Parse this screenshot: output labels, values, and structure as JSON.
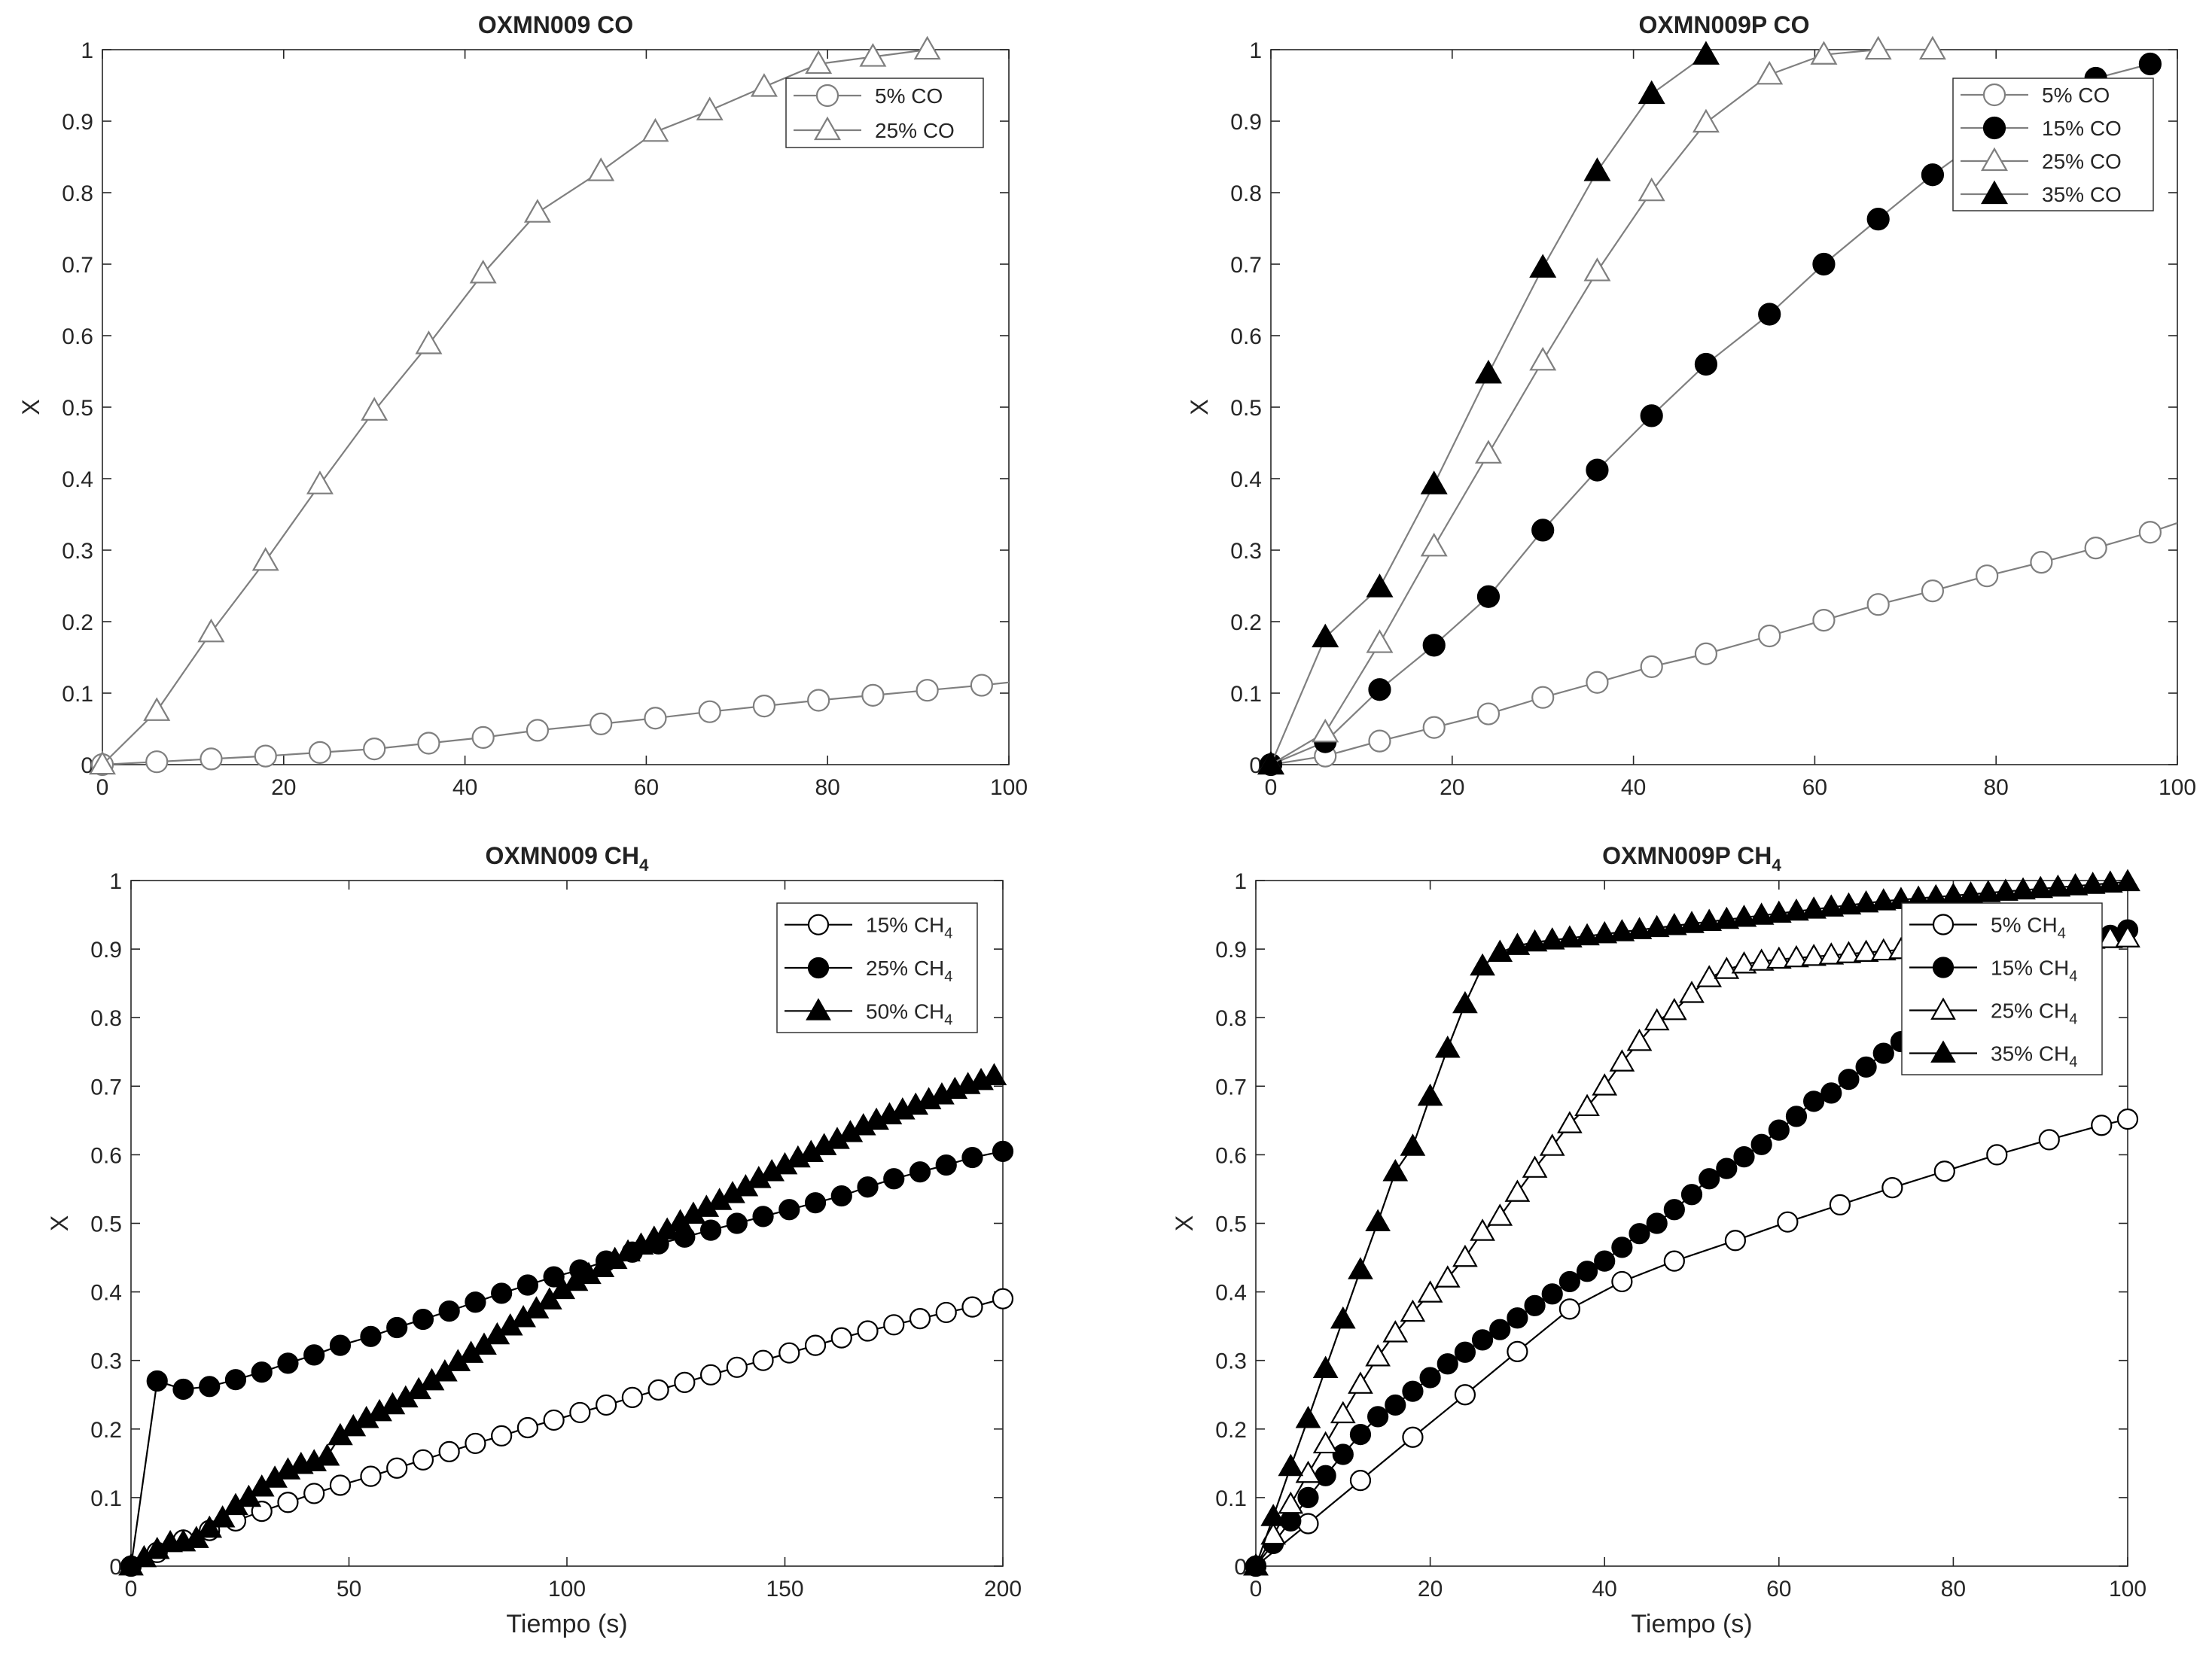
{
  "chart_data": [
    {
      "type": "line",
      "title": "OXMN009 CO",
      "xlabel": "",
      "ylabel": "X",
      "xlim": [
        0,
        100
      ],
      "ylim": [
        0,
        1
      ],
      "xticks": [
        "0",
        "20",
        "40",
        "60",
        "80",
        "100"
      ],
      "yticks": [
        "0",
        "0.1",
        "0.2",
        "0.3",
        "0.4",
        "0.5",
        "0.6",
        "0.7",
        "0.8",
        "0.9",
        "1"
      ],
      "legend_position": "top-right",
      "series": [
        {
          "name": "5% CO",
          "marker": "circle-open",
          "line_color": "#7f7f7f",
          "x": [
            0,
            6,
            12,
            18,
            24,
            30,
            36,
            42,
            48,
            55,
            61,
            67,
            73,
            79,
            85,
            91,
            97,
            100
          ],
          "y": [
            0,
            0.004,
            0.008,
            0.012,
            0.017,
            0.022,
            0.03,
            0.038,
            0.048,
            0.057,
            0.065,
            0.074,
            0.082,
            0.09,
            0.097,
            0.104,
            0.111,
            0.115
          ],
          "marker_x": [
            0,
            6,
            12,
            18,
            24,
            30,
            36,
            42,
            48,
            55,
            61,
            67,
            73,
            79,
            85,
            91,
            97
          ]
        },
        {
          "name": "25% CO",
          "marker": "triangle-open",
          "line_color": "#7f7f7f",
          "x": [
            0,
            6,
            12,
            18,
            24,
            30,
            36,
            42,
            48,
            55,
            61,
            67,
            73,
            79,
            85,
            91
          ],
          "y": [
            0,
            0.075,
            0.185,
            0.285,
            0.392,
            0.495,
            0.588,
            0.687,
            0.772,
            0.83,
            0.885,
            0.915,
            0.948,
            0.98,
            0.99,
            1.0
          ]
        }
      ]
    },
    {
      "type": "line",
      "title": "OXMN009P CO",
      "xlabel": "",
      "ylabel": "X",
      "xlim": [
        0,
        100
      ],
      "ylim": [
        0,
        1
      ],
      "xticks": [
        "0",
        "20",
        "40",
        "60",
        "80",
        "100"
      ],
      "yticks": [
        "0",
        "0.1",
        "0.2",
        "0.3",
        "0.4",
        "0.5",
        "0.6",
        "0.7",
        "0.8",
        "0.9",
        "1"
      ],
      "legend_position": "top-right",
      "series": [
        {
          "name": "5% CO",
          "marker": "circle-open",
          "line_color": "#7f7f7f",
          "x": [
            0,
            6,
            12,
            18,
            24,
            30,
            36,
            42,
            48,
            55,
            61,
            67,
            73,
            79,
            85,
            91,
            97,
            100
          ],
          "y": [
            0,
            0.012,
            0.033,
            0.052,
            0.071,
            0.094,
            0.115,
            0.137,
            0.155,
            0.18,
            0.202,
            0.224,
            0.243,
            0.264,
            0.283,
            0.303,
            0.325,
            0.338
          ]
        },
        {
          "name": "15% CO",
          "marker": "circle-filled",
          "line_color": "#7f7f7f",
          "x": [
            0,
            6,
            12,
            18,
            24,
            30,
            36,
            42,
            48,
            55,
            61,
            67,
            73,
            79,
            85,
            91,
            97
          ],
          "y": [
            0,
            0.032,
            0.105,
            0.167,
            0.235,
            0.328,
            0.412,
            0.488,
            0.56,
            0.63,
            0.7,
            0.763,
            0.825,
            0.88,
            0.925,
            0.96,
            0.98
          ]
        },
        {
          "name": "25% CO",
          "marker": "triangle-open",
          "line_color": "#7f7f7f",
          "x": [
            0,
            6,
            12,
            18,
            24,
            30,
            36,
            42,
            48,
            55,
            61,
            67,
            73
          ],
          "y": [
            0,
            0.045,
            0.17,
            0.305,
            0.435,
            0.565,
            0.69,
            0.802,
            0.898,
            0.965,
            0.993,
            1.0,
            1.0
          ]
        },
        {
          "name": "35% CO",
          "marker": "triangle-filled",
          "line_color": "#7f7f7f",
          "x": [
            0,
            6,
            12,
            18,
            24,
            30,
            36,
            42,
            48
          ],
          "y": [
            0,
            0.178,
            0.248,
            0.392,
            0.547,
            0.695,
            0.83,
            0.938,
            0.993
          ]
        }
      ]
    },
    {
      "type": "line",
      "title": "OXMN009 CH",
      "title_subscript": "4",
      "xlabel": "Tiempo (s)",
      "ylabel": "X",
      "xlim": [
        0,
        200
      ],
      "ylim": [
        0,
        1
      ],
      "xticks": [
        "0",
        "50",
        "100",
        "150",
        "200"
      ],
      "yticks": [
        "0",
        "0.1",
        "0.2",
        "0.3",
        "0.4",
        "0.5",
        "0.6",
        "0.7",
        "0.8",
        "0.9",
        "1"
      ],
      "legend_position": "top-right",
      "series": [
        {
          "name": "15% CH",
          "name_subscript": "4",
          "marker": "circle-open",
          "line_color": "#000000",
          "x": [
            0,
            6,
            12,
            18,
            24,
            30,
            36,
            42,
            48,
            55,
            61,
            67,
            73,
            79,
            85,
            91,
            97,
            103,
            109,
            115,
            121,
            127,
            133,
            139,
            145,
            151,
            157,
            163,
            169,
            175,
            181,
            187,
            193,
            200
          ],
          "y": [
            0,
            0.02,
            0.038,
            0.052,
            0.066,
            0.08,
            0.093,
            0.106,
            0.118,
            0.131,
            0.143,
            0.155,
            0.167,
            0.179,
            0.19,
            0.202,
            0.213,
            0.224,
            0.235,
            0.246,
            0.257,
            0.268,
            0.279,
            0.29,
            0.3,
            0.311,
            0.322,
            0.333,
            0.343,
            0.352,
            0.361,
            0.37,
            0.378,
            0.39
          ]
        },
        {
          "name": "25% CH",
          "name_subscript": "4",
          "marker": "circle-filled",
          "line_color": "#000000",
          "x": [
            0,
            6,
            12,
            18,
            24,
            30,
            36,
            42,
            48,
            55,
            61,
            67,
            73,
            79,
            85,
            91,
            97,
            103,
            109,
            115,
            121,
            127,
            133,
            139,
            145,
            151,
            157,
            163,
            169,
            175,
            181,
            187,
            193,
            200
          ],
          "y": [
            0,
            0.27,
            0.258,
            0.262,
            0.272,
            0.283,
            0.296,
            0.308,
            0.322,
            0.335,
            0.348,
            0.36,
            0.372,
            0.385,
            0.398,
            0.41,
            0.422,
            0.432,
            0.445,
            0.458,
            0.47,
            0.48,
            0.49,
            0.5,
            0.51,
            0.52,
            0.53,
            0.54,
            0.553,
            0.565,
            0.575,
            0.585,
            0.596,
            0.605
          ]
        },
        {
          "name": "50% CH",
          "name_subscript": "4",
          "marker": "triangle-filled",
          "line_color": "#000000",
          "x": [
            0,
            3,
            6,
            9,
            12,
            15,
            18,
            21,
            24,
            27,
            30,
            33,
            36,
            39,
            42,
            45,
            48,
            51,
            54,
            57,
            60,
            63,
            66,
            69,
            72,
            75,
            78,
            81,
            84,
            87,
            90,
            93,
            96,
            99,
            102,
            105,
            108,
            111,
            114,
            117,
            120,
            123,
            126,
            129,
            132,
            135,
            138,
            141,
            144,
            147,
            150,
            153,
            156,
            159,
            162,
            165,
            168,
            171,
            174,
            177,
            180,
            183,
            186,
            189,
            192,
            195,
            198
          ],
          "y": [
            0,
            0.012,
            0.024,
            0.034,
            0.035,
            0.04,
            0.055,
            0.07,
            0.088,
            0.1,
            0.115,
            0.128,
            0.14,
            0.148,
            0.152,
            0.16,
            0.19,
            0.203,
            0.215,
            0.225,
            0.235,
            0.245,
            0.257,
            0.27,
            0.283,
            0.298,
            0.31,
            0.322,
            0.337,
            0.35,
            0.362,
            0.375,
            0.388,
            0.403,
            0.415,
            0.425,
            0.435,
            0.447,
            0.458,
            0.468,
            0.478,
            0.49,
            0.502,
            0.513,
            0.523,
            0.533,
            0.543,
            0.553,
            0.565,
            0.575,
            0.585,
            0.595,
            0.603,
            0.613,
            0.622,
            0.632,
            0.642,
            0.65,
            0.658,
            0.665,
            0.672,
            0.68,
            0.687,
            0.695,
            0.702,
            0.708,
            0.715
          ]
        }
      ]
    },
    {
      "type": "line",
      "title": "OXMN009P CH",
      "title_subscript": "4",
      "xlabel": "Tiempo (s)",
      "ylabel": "X",
      "xlim": [
        0,
        100
      ],
      "ylim": [
        0,
        1
      ],
      "xticks": [
        "0",
        "20",
        "40",
        "60",
        "80",
        "100"
      ],
      "yticks": [
        "0",
        "0.1",
        "0.2",
        "0.3",
        "0.4",
        "0.5",
        "0.6",
        "0.7",
        "0.8",
        "0.9",
        "1"
      ],
      "legend_position": "top-right",
      "series": [
        {
          "name": "5% CH",
          "name_subscript": "4",
          "marker": "circle-open",
          "line_color": "#000000",
          "x": [
            0,
            6,
            12,
            18,
            24,
            30,
            36,
            42,
            48,
            55,
            61,
            67,
            73,
            79,
            85,
            91,
            97,
            100
          ],
          "y": [
            0,
            0.062,
            0.125,
            0.188,
            0.25,
            0.313,
            0.375,
            0.415,
            0.445,
            0.475,
            0.502,
            0.527,
            0.552,
            0.576,
            0.6,
            0.622,
            0.643,
            0.652
          ]
        },
        {
          "name": "15% CH",
          "name_subscript": "4",
          "marker": "circle-filled",
          "line_color": "#000000",
          "x": [
            0,
            2,
            4,
            6,
            8,
            10,
            12,
            14,
            16,
            18,
            20,
            22,
            24,
            26,
            28,
            30,
            32,
            34,
            36,
            38,
            40,
            42,
            44,
            46,
            48,
            50,
            52,
            54,
            56,
            58,
            60,
            62,
            64,
            66,
            68,
            70,
            72,
            74,
            76,
            78,
            80,
            82,
            84,
            86,
            88,
            90,
            92,
            94,
            96,
            98,
            100
          ],
          "y": [
            0,
            0.033,
            0.066,
            0.1,
            0.132,
            0.163,
            0.192,
            0.218,
            0.235,
            0.255,
            0.275,
            0.295,
            0.312,
            0.33,
            0.345,
            0.362,
            0.38,
            0.397,
            0.415,
            0.43,
            0.445,
            0.465,
            0.485,
            0.5,
            0.52,
            0.542,
            0.565,
            0.58,
            0.597,
            0.615,
            0.636,
            0.656,
            0.678,
            0.69,
            0.71,
            0.728,
            0.748,
            0.765,
            0.78,
            0.79,
            0.8,
            0.812,
            0.822,
            0.835,
            0.85,
            0.87,
            0.885,
            0.9,
            0.91,
            0.92,
            0.928
          ]
        },
        {
          "name": "25% CH",
          "name_subscript": "4",
          "marker": "triangle-open",
          "line_color": "#000000",
          "x": [
            0,
            2,
            4,
            6,
            8,
            10,
            12,
            14,
            16,
            18,
            20,
            22,
            24,
            26,
            28,
            30,
            32,
            34,
            36,
            38,
            40,
            42,
            44,
            46,
            48,
            50,
            52,
            54,
            56,
            58,
            60,
            62,
            64,
            66,
            68,
            70,
            72,
            74,
            76,
            78,
            80,
            82,
            84,
            86,
            88,
            90,
            92,
            94,
            96,
            98,
            100
          ],
          "y": [
            0,
            0.045,
            0.09,
            0.135,
            0.178,
            0.222,
            0.265,
            0.305,
            0.34,
            0.37,
            0.398,
            0.42,
            0.45,
            0.488,
            0.51,
            0.545,
            0.58,
            0.612,
            0.645,
            0.67,
            0.7,
            0.735,
            0.765,
            0.795,
            0.81,
            0.835,
            0.858,
            0.87,
            0.878,
            0.882,
            0.885,
            0.887,
            0.889,
            0.891,
            0.893,
            0.895,
            0.897,
            0.899,
            0.901,
            0.903,
            0.905,
            0.907,
            0.908,
            0.909,
            0.91,
            0.911,
            0.912,
            0.913,
            0.914,
            0.915,
            0.916
          ]
        },
        {
          "name": "35% CH",
          "name_subscript": "4",
          "marker": "triangle-filled",
          "line_color": "#000000",
          "x": [
            0,
            2,
            4,
            6,
            8,
            10,
            12,
            14,
            16,
            18,
            20,
            22,
            24,
            26,
            28,
            30,
            32,
            34,
            36,
            38,
            40,
            42,
            44,
            46,
            48,
            50,
            52,
            54,
            56,
            58,
            60,
            62,
            64,
            66,
            68,
            70,
            72,
            74,
            76,
            78,
            80,
            82,
            84,
            86,
            88,
            90,
            92,
            94,
            96,
            98,
            100
          ],
          "y": [
            0,
            0.072,
            0.145,
            0.215,
            0.288,
            0.36,
            0.432,
            0.502,
            0.575,
            0.612,
            0.685,
            0.755,
            0.82,
            0.875,
            0.895,
            0.905,
            0.91,
            0.913,
            0.916,
            0.919,
            0.922,
            0.925,
            0.928,
            0.931,
            0.934,
            0.937,
            0.94,
            0.943,
            0.946,
            0.949,
            0.952,
            0.955,
            0.958,
            0.961,
            0.964,
            0.967,
            0.97,
            0.972,
            0.974,
            0.976,
            0.978,
            0.98,
            0.982,
            0.984,
            0.986,
            0.988,
            0.99,
            0.992,
            0.994,
            0.996,
            0.998
          ]
        }
      ]
    }
  ]
}
